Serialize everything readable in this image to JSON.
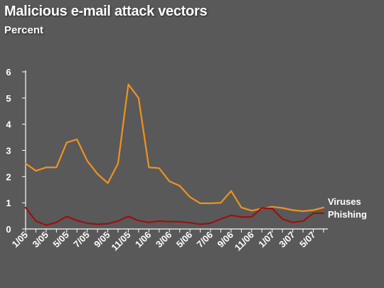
{
  "chart_data": {
    "type": "line",
    "title": "Malicious e-mail attack vectors",
    "subtitle": "Percent",
    "xlabel": "",
    "ylabel": "",
    "ylim": [
      0,
      6
    ],
    "yticks": [
      "0",
      "1",
      "2",
      "3",
      "4",
      "5",
      "6"
    ],
    "x": [
      "1/05",
      "2/05",
      "3/05",
      "4/05",
      "5/05",
      "6/05",
      "7/05",
      "8/05",
      "9/05",
      "10/05",
      "11/05",
      "12/05",
      "1/06",
      "2/06",
      "3/06",
      "4/06",
      "5/06",
      "6/06",
      "7/06",
      "8/06",
      "9/06",
      "10/06",
      "11/06",
      "12/06",
      "1/07",
      "2/07",
      "3/07",
      "4/07",
      "5/07",
      "6/07"
    ],
    "xtick_labels": [
      "1/05",
      "3/05",
      "5/05",
      "7/05",
      "9/05",
      "11/05",
      "1/06",
      "3/06",
      "5/06",
      "7/06",
      "9/06",
      "11/06",
      "1/07",
      "3/07",
      "5/07"
    ],
    "grid": false,
    "legend": "direct labels at right end of lines",
    "series": [
      {
        "name": "Viruses",
        "color": "#F0921E",
        "values": [
          2.5,
          2.22,
          2.35,
          2.35,
          3.3,
          3.42,
          2.6,
          2.1,
          1.75,
          2.5,
          5.52,
          5.0,
          2.35,
          2.32,
          1.82,
          1.65,
          1.22,
          0.98,
          0.98,
          1.0,
          1.45,
          0.82,
          0.7,
          0.78,
          0.85,
          0.8,
          0.72,
          0.68,
          0.72,
          0.82
        ]
      },
      {
        "name": "Phishing",
        "color": "#9B1111",
        "values": [
          0.82,
          0.3,
          0.15,
          0.25,
          0.48,
          0.32,
          0.22,
          0.18,
          0.2,
          0.3,
          0.48,
          0.32,
          0.25,
          0.3,
          0.28,
          0.28,
          0.24,
          0.18,
          0.22,
          0.38,
          0.52,
          0.46,
          0.46,
          0.8,
          0.78,
          0.38,
          0.25,
          0.3,
          0.6,
          0.6
        ]
      }
    ]
  }
}
